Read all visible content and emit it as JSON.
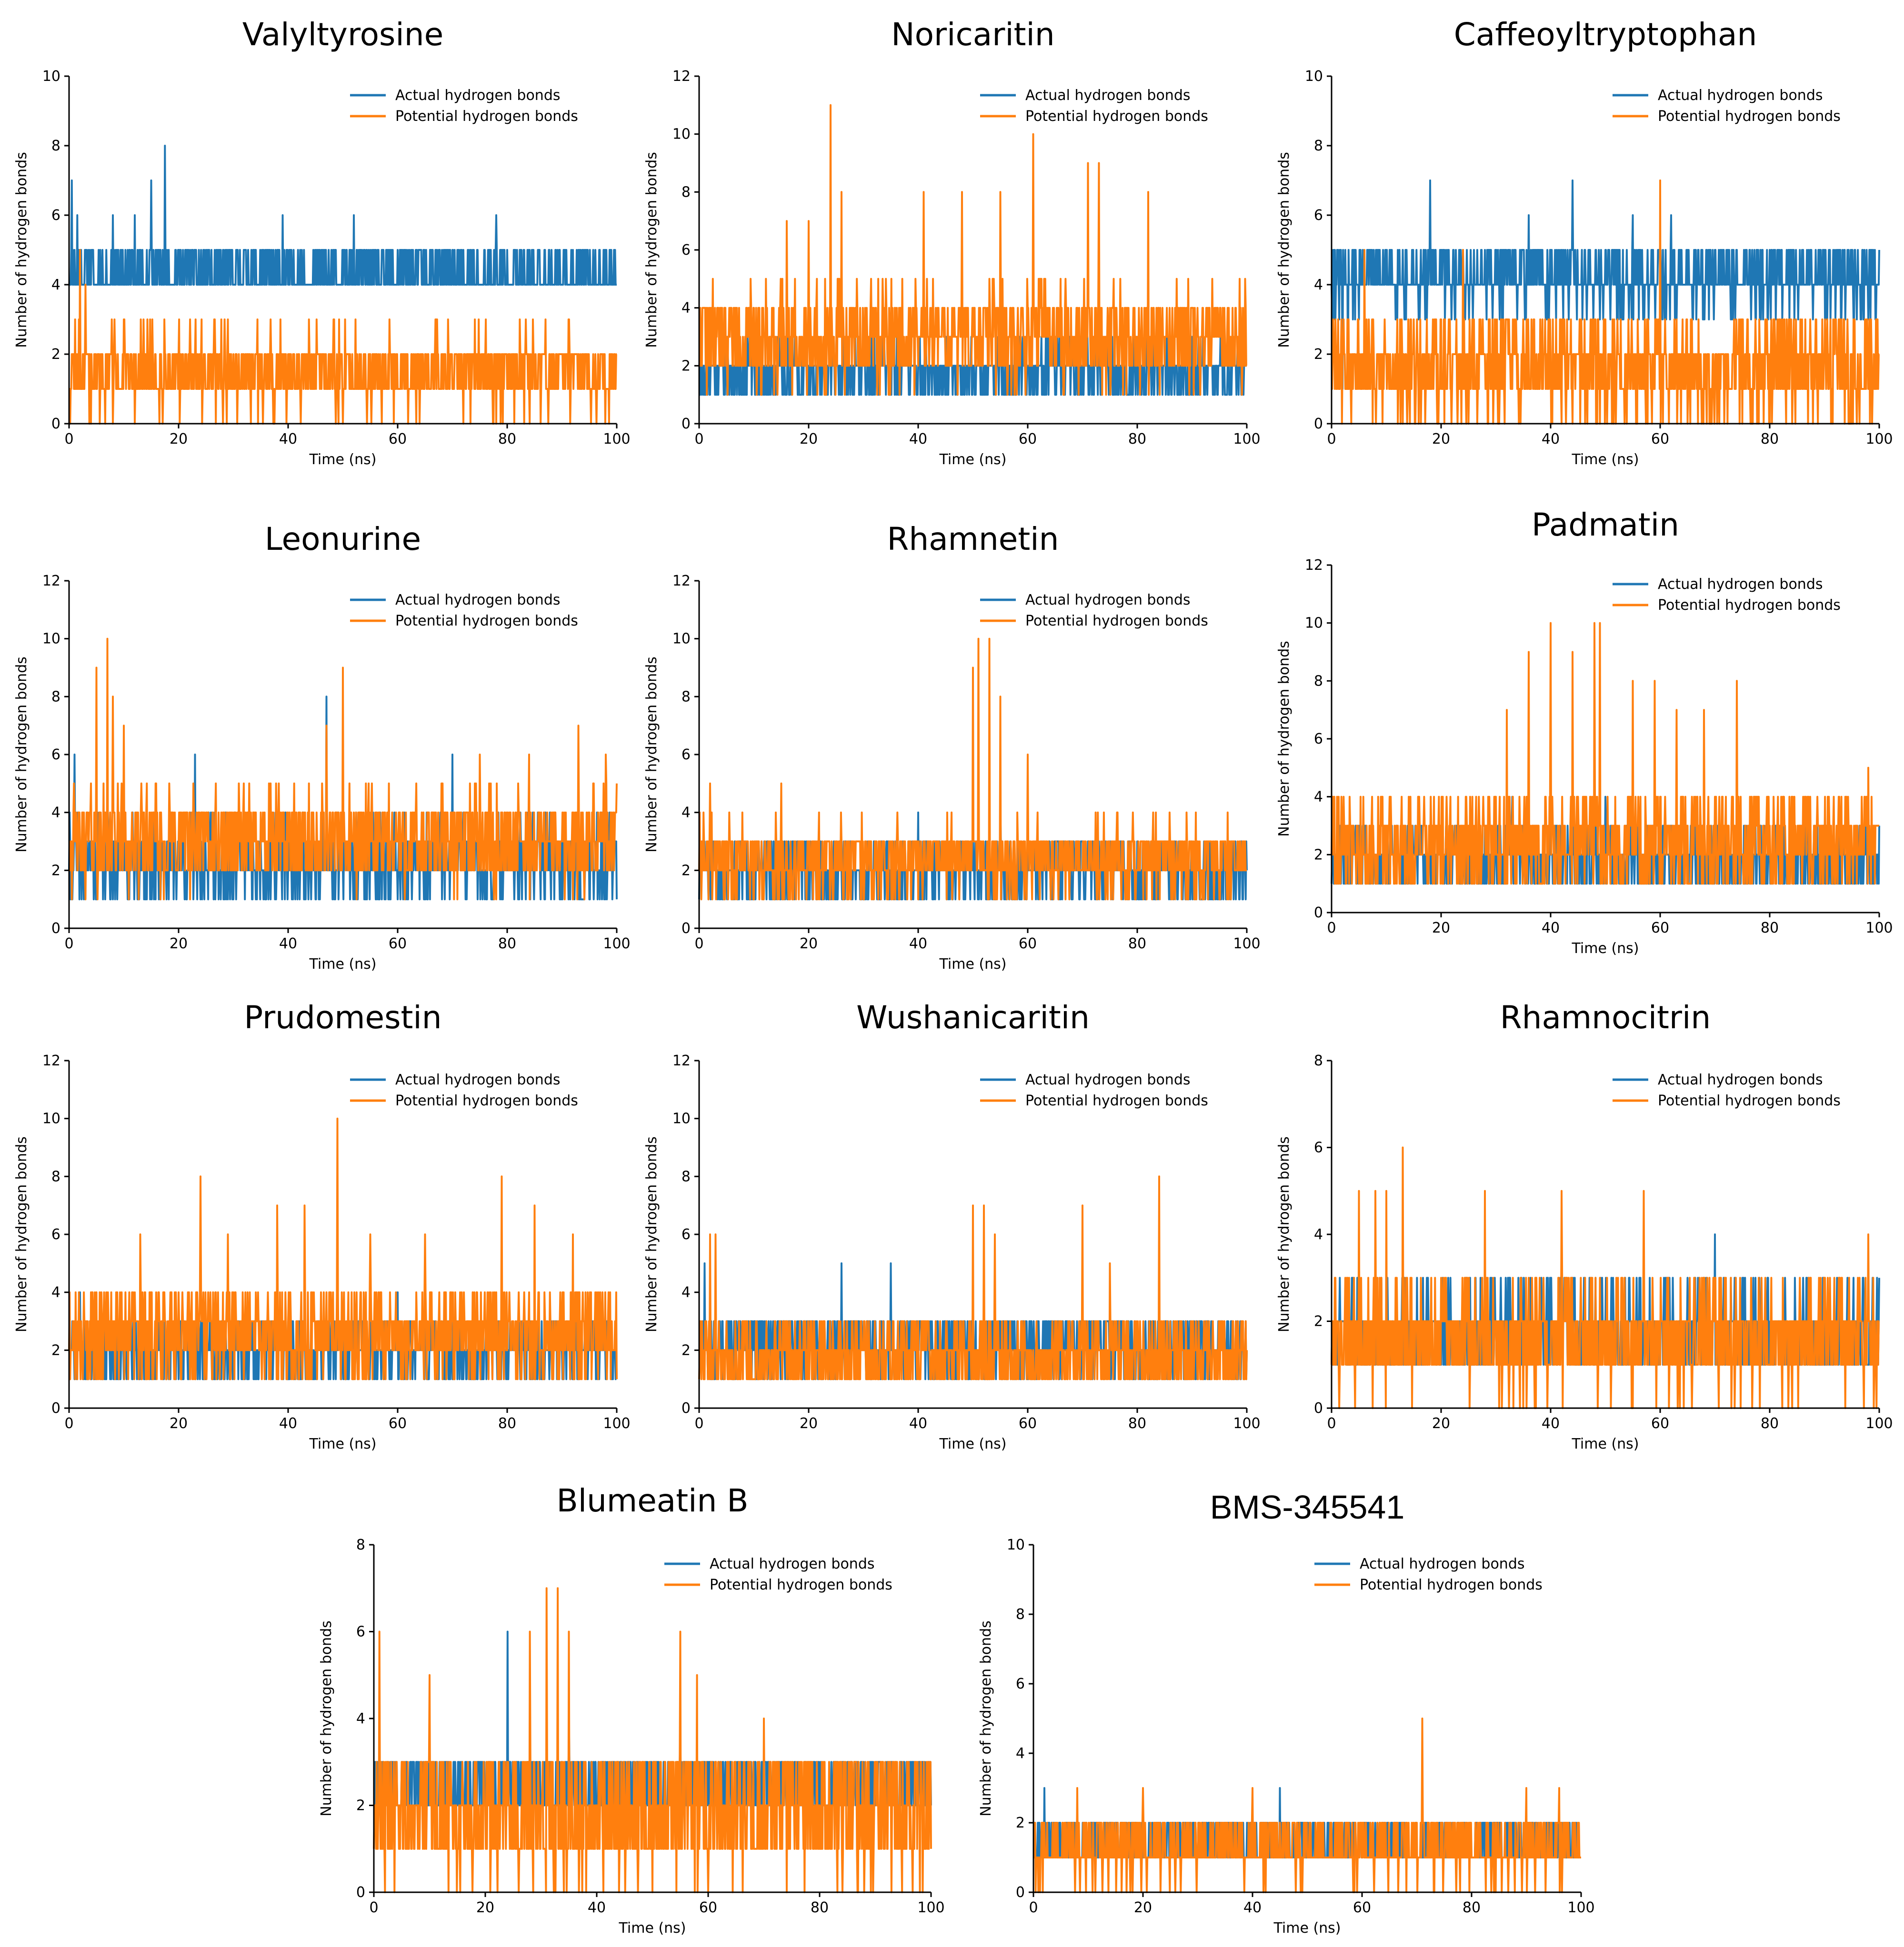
{
  "figure": {
    "colors": {
      "actual": "#1f77b4",
      "potential": "#ff7f0e"
    },
    "legend": {
      "actual_label": "Actual hydrogen bonds",
      "potential_label": "Potential hydrogen bonds",
      "placement": "top-right"
    }
  },
  "chart_data": [
    {
      "type": "line",
      "title": "Valyltyrosine",
      "xlabel": "Time (ns)",
      "ylabel": "Number of hydrogen bonds",
      "xlim": [
        0,
        100
      ],
      "ylim": [
        0,
        10
      ],
      "xticks": [
        0,
        20,
        40,
        60,
        80,
        100
      ],
      "yticks": [
        0,
        2,
        4,
        6,
        8,
        10
      ],
      "series": [
        {
          "name": "Actual hydrogen bonds",
          "color": "#1f77b4",
          "seed": 11,
          "base": 4.3,
          "spread": 0.8,
          "min": 3,
          "max": 5,
          "peaks": [
            [
              0.5,
              7
            ],
            [
              1.5,
              6
            ],
            [
              8,
              6
            ],
            [
              12,
              6
            ],
            [
              15,
              7
            ],
            [
              17.5,
              8
            ],
            [
              39,
              6
            ],
            [
              52,
              6
            ],
            [
              78,
              6
            ]
          ]
        },
        {
          "name": "Potential hydrogen bonds",
          "color": "#ff7f0e",
          "seed": 12,
          "base": 1.5,
          "spread": 1.1,
          "min": 0,
          "max": 3,
          "peaks": [
            [
              2,
              5
            ],
            [
              3,
              4
            ]
          ]
        }
      ]
    },
    {
      "type": "line",
      "title": "Noricaritin",
      "xlabel": "Time (ns)",
      "ylabel": "Number of hydrogen bonds",
      "xlim": [
        0,
        100
      ],
      "ylim": [
        0,
        12
      ],
      "xticks": [
        0,
        20,
        40,
        60,
        80,
        100
      ],
      "yticks": [
        0,
        2,
        4,
        6,
        8,
        10,
        12
      ],
      "series": [
        {
          "name": "Actual hydrogen bonds",
          "color": "#1f77b4",
          "seed": 21,
          "base": 1.8,
          "spread": 0.9,
          "min": 0,
          "max": 3,
          "peaks": [
            [
              5,
              3
            ],
            [
              30,
              3
            ],
            [
              55,
              3
            ]
          ]
        },
        {
          "name": "Potential hydrogen bonds",
          "color": "#ff7f0e",
          "seed": 22,
          "base": 3,
          "spread": 1.6,
          "min": 0,
          "max": 6,
          "peaks": [
            [
              16,
              7
            ],
            [
              20,
              7
            ],
            [
              24,
              11
            ],
            [
              26,
              8
            ],
            [
              41,
              8
            ],
            [
              48,
              8
            ],
            [
              55,
              8
            ],
            [
              61,
              10
            ],
            [
              71,
              9
            ],
            [
              73,
              9
            ],
            [
              82,
              8
            ]
          ]
        }
      ]
    },
    {
      "type": "line",
      "title": "Caffeoyltryptophan",
      "xlabel": "Time (ns)",
      "ylabel": "Number of hydrogen bonds",
      "xlim": [
        0,
        100
      ],
      "ylim": [
        0,
        10
      ],
      "xticks": [
        0,
        20,
        40,
        60,
        80,
        100
      ],
      "yticks": [
        0,
        2,
        4,
        6,
        8,
        10
      ],
      "series": [
        {
          "name": "Actual hydrogen bonds",
          "color": "#1f77b4",
          "seed": 31,
          "base": 4.2,
          "spread": 0.9,
          "min": 3,
          "max": 5,
          "peaks": [
            [
              2,
              1
            ],
            [
              3,
              1
            ],
            [
              18,
              7
            ],
            [
              36,
              6
            ],
            [
              44,
              7
            ],
            [
              55,
              6
            ],
            [
              62,
              6
            ]
          ]
        },
        {
          "name": "Potential hydrogen bonds",
          "color": "#ff7f0e",
          "seed": 32,
          "base": 1.6,
          "spread": 1.4,
          "min": 0,
          "max": 4,
          "peaks": [
            [
              6,
              5
            ],
            [
              24,
              5
            ],
            [
              60,
              7
            ]
          ]
        }
      ]
    },
    {
      "type": "line",
      "title": "Leonurine",
      "xlabel": "Time (ns)",
      "ylabel": "Number of hydrogen bonds",
      "xlim": [
        0,
        100
      ],
      "ylim": [
        0,
        12
      ],
      "xticks": [
        0,
        20,
        40,
        60,
        80,
        100
      ],
      "yticks": [
        0,
        2,
        4,
        6,
        8,
        10,
        12
      ],
      "series": [
        {
          "name": "Actual hydrogen bonds",
          "color": "#1f77b4",
          "seed": 41,
          "base": 2.3,
          "spread": 1.3,
          "min": 0,
          "max": 4,
          "peaks": [
            [
              1,
              6
            ],
            [
              23,
              6
            ],
            [
              47,
              8
            ],
            [
              70,
              6
            ]
          ]
        },
        {
          "name": "Potential hydrogen bonds",
          "color": "#ff7f0e",
          "seed": 42,
          "base": 3,
          "spread": 1.6,
          "min": 0,
          "max": 5,
          "peaks": [
            [
              5,
              9
            ],
            [
              7,
              10
            ],
            [
              8,
              8
            ],
            [
              10,
              7
            ],
            [
              47,
              7
            ],
            [
              50,
              9
            ],
            [
              75,
              6
            ],
            [
              84,
              6
            ],
            [
              93,
              7
            ],
            [
              98,
              6
            ]
          ]
        }
      ]
    },
    {
      "type": "line",
      "title": "Rhamnetin",
      "xlabel": "Time (ns)",
      "ylabel": "Number of hydrogen bonds",
      "xlim": [
        0,
        100
      ],
      "ylim": [
        0,
        12
      ],
      "xticks": [
        0,
        20,
        40,
        60,
        80,
        100
      ],
      "yticks": [
        0,
        2,
        4,
        6,
        8,
        10,
        12
      ],
      "series": [
        {
          "name": "Actual hydrogen bonds",
          "color": "#1f77b4",
          "seed": 51,
          "base": 2,
          "spread": 1.1,
          "min": 0,
          "max": 4,
          "peaks": [
            [
              40,
              4
            ],
            [
              55,
              4
            ]
          ]
        },
        {
          "name": "Potential hydrogen bonds",
          "color": "#ff7f0e",
          "seed": 52,
          "base": 2.4,
          "spread": 1.2,
          "min": 0,
          "max": 4,
          "peaks": [
            [
              2,
              5
            ],
            [
              15,
              5
            ],
            [
              50,
              9
            ],
            [
              51,
              10
            ],
            [
              53,
              10
            ],
            [
              55,
              8
            ],
            [
              60,
              6
            ]
          ]
        }
      ]
    },
    {
      "type": "line",
      "title": "Padmatin",
      "xlabel": "Time (ns)",
      "ylabel": "Number of hydrogen bonds",
      "xlim": [
        0,
        100
      ],
      "ylim": [
        0,
        12
      ],
      "xticks": [
        0,
        20,
        40,
        60,
        80,
        100
      ],
      "yticks": [
        0,
        2,
        4,
        6,
        8,
        10,
        12
      ],
      "series": [
        {
          "name": "Actual hydrogen bonds",
          "color": "#1f77b4",
          "seed": 61,
          "base": 1.8,
          "spread": 1,
          "min": 0,
          "max": 3,
          "peaks": [
            [
              4,
              3
            ],
            [
              33,
              4
            ],
            [
              50,
              4
            ],
            [
              70,
              3
            ]
          ]
        },
        {
          "name": "Potential hydrogen bonds",
          "color": "#ff7f0e",
          "seed": 62,
          "base": 2.4,
          "spread": 1.6,
          "min": 0,
          "max": 5,
          "peaks": [
            [
              32,
              7
            ],
            [
              36,
              9
            ],
            [
              40,
              10
            ],
            [
              44,
              9
            ],
            [
              48,
              10
            ],
            [
              49,
              10
            ],
            [
              55,
              8
            ],
            [
              59,
              8
            ],
            [
              63,
              7
            ],
            [
              68,
              7
            ],
            [
              74,
              8
            ],
            [
              98,
              5
            ]
          ]
        }
      ]
    },
    {
      "type": "line",
      "title": "Prudomestin",
      "xlabel": "Time (ns)",
      "ylabel": "Number of hydrogen bonds",
      "xlim": [
        0,
        100
      ],
      "ylim": [
        0,
        12
      ],
      "xticks": [
        0,
        20,
        40,
        60,
        80,
        100
      ],
      "yticks": [
        0,
        2,
        4,
        6,
        8,
        10,
        12
      ],
      "series": [
        {
          "name": "Actual hydrogen bonds",
          "color": "#1f77b4",
          "seed": 71,
          "base": 2,
          "spread": 1,
          "min": 0,
          "max": 4,
          "peaks": [
            [
              2,
              4
            ],
            [
              60,
              4
            ]
          ]
        },
        {
          "name": "Potential hydrogen bonds",
          "color": "#ff7f0e",
          "seed": 72,
          "base": 2.6,
          "spread": 1.5,
          "min": 0,
          "max": 5,
          "peaks": [
            [
              13,
              6
            ],
            [
              24,
              8
            ],
            [
              29,
              6
            ],
            [
              38,
              7
            ],
            [
              43,
              7
            ],
            [
              49,
              10
            ],
            [
              55,
              6
            ],
            [
              65,
              6
            ],
            [
              79,
              8
            ],
            [
              85,
              7
            ],
            [
              92,
              6
            ]
          ]
        }
      ]
    },
    {
      "type": "line",
      "title": "Wushanicaritin",
      "xlabel": "Time (ns)",
      "ylabel": "Number of hydrogen bonds",
      "xlim": [
        0,
        100
      ],
      "ylim": [
        0,
        12
      ],
      "xticks": [
        0,
        20,
        40,
        60,
        80,
        100
      ],
      "yticks": [
        0,
        2,
        4,
        6,
        8,
        10,
        12
      ],
      "series": [
        {
          "name": "Actual hydrogen bonds",
          "color": "#1f77b4",
          "seed": 81,
          "base": 2.2,
          "spread": 1,
          "min": 0,
          "max": 4,
          "peaks": [
            [
              1,
              5
            ],
            [
              26,
              5
            ],
            [
              35,
              5
            ]
          ]
        },
        {
          "name": "Potential hydrogen bonds",
          "color": "#ff7f0e",
          "seed": 82,
          "base": 1.8,
          "spread": 1.2,
          "min": 0,
          "max": 4,
          "peaks": [
            [
              2,
              6
            ],
            [
              3,
              6
            ],
            [
              50,
              7
            ],
            [
              52,
              7
            ],
            [
              54,
              6
            ],
            [
              70,
              7
            ],
            [
              75,
              5
            ],
            [
              84,
              8
            ]
          ]
        }
      ]
    },
    {
      "type": "line",
      "title": "Rhamnocitrin",
      "xlabel": "Time (ns)",
      "ylabel": "Number of hydrogen bonds",
      "xlim": [
        0,
        100
      ],
      "ylim": [
        0,
        8
      ],
      "xticks": [
        0,
        20,
        40,
        60,
        80,
        100
      ],
      "yticks": [
        0,
        2,
        4,
        6,
        8
      ],
      "series": [
        {
          "name": "Actual hydrogen bonds",
          "color": "#1f77b4",
          "seed": 91,
          "base": 1.8,
          "spread": 0.9,
          "min": 0,
          "max": 3,
          "peaks": [
            [
              65,
              3
            ],
            [
              68,
              3
            ],
            [
              70,
              4
            ]
          ]
        },
        {
          "name": "Potential hydrogen bonds",
          "color": "#ff7f0e",
          "seed": 92,
          "base": 1.6,
          "spread": 1.2,
          "min": 0,
          "max": 3,
          "peaks": [
            [
              5,
              5
            ],
            [
              8,
              5
            ],
            [
              10,
              5
            ],
            [
              13,
              6
            ],
            [
              28,
              5
            ],
            [
              42,
              5
            ],
            [
              57,
              5
            ],
            [
              98,
              4
            ]
          ]
        }
      ]
    },
    {
      "type": "line",
      "title": "Blumeatin B",
      "xlabel": "Time (ns)",
      "ylabel": "Number of hydrogen bonds",
      "xlim": [
        0,
        100
      ],
      "ylim": [
        0,
        8
      ],
      "xticks": [
        0,
        20,
        40,
        60,
        80,
        100
      ],
      "yticks": [
        0,
        2,
        4,
        6,
        8
      ],
      "series": [
        {
          "name": "Actual hydrogen bonds",
          "color": "#1f77b4",
          "seed": 101,
          "base": 2.4,
          "spread": 0.9,
          "min": 0,
          "max": 3,
          "peaks": [
            [
              24,
              6
            ],
            [
              35,
              4
            ],
            [
              55,
              4
            ]
          ]
        },
        {
          "name": "Potential hydrogen bonds",
          "color": "#ff7f0e",
          "seed": 102,
          "base": 1.8,
          "spread": 1.4,
          "min": 0,
          "max": 4,
          "peaks": [
            [
              1,
              6
            ],
            [
              10,
              5
            ],
            [
              28,
              6
            ],
            [
              31,
              7
            ],
            [
              33,
              7
            ],
            [
              35,
              6
            ],
            [
              55,
              6
            ],
            [
              58,
              5
            ],
            [
              70,
              4
            ]
          ]
        }
      ]
    },
    {
      "type": "line",
      "title": "BMS-345541",
      "xlabel": "Time (ns)",
      "ylabel": "Number of hydrogen bonds",
      "xlim": [
        0,
        100
      ],
      "ylim": [
        0,
        10
      ],
      "xticks": [
        0,
        20,
        40,
        60,
        80,
        100
      ],
      "yticks": [
        0,
        2,
        4,
        6,
        8,
        10
      ],
      "series": [
        {
          "name": "Actual hydrogen bonds",
          "color": "#1f77b4",
          "seed": 111,
          "base": 1.3,
          "spread": 0.7,
          "min": 0,
          "max": 2,
          "peaks": [
            [
              2,
              3
            ],
            [
              45,
              3
            ],
            [
              71,
              3
            ]
          ]
        },
        {
          "name": "Potential hydrogen bonds",
          "color": "#ff7f0e",
          "seed": 112,
          "base": 1.2,
          "spread": 0.8,
          "min": 0,
          "max": 2,
          "peaks": [
            [
              8,
              3
            ],
            [
              20,
              3
            ],
            [
              40,
              3
            ],
            [
              71,
              5
            ],
            [
              90,
              3
            ],
            [
              96,
              3
            ]
          ]
        }
      ]
    }
  ]
}
